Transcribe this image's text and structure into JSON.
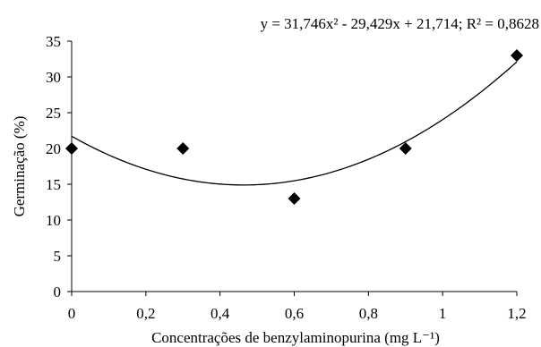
{
  "chart_data": {
    "type": "scatter",
    "title": "",
    "xlabel": "Concentrações de benzylaminopurina (mg L⁻¹)",
    "ylabel": "Germinação (%)",
    "xlim": [
      0,
      1.2
    ],
    "ylim": [
      0,
      35
    ],
    "x_ticks": [
      0,
      0.2,
      0.4,
      0.6,
      0.8,
      1.0,
      1.2
    ],
    "x_tick_labels": [
      "0",
      "0,2",
      "0,4",
      "0,6",
      "0,8",
      "1",
      "1,2"
    ],
    "y_ticks": [
      0,
      5,
      10,
      15,
      20,
      25,
      30,
      35
    ],
    "y_tick_labels": [
      "0",
      "5",
      "10",
      "15",
      "20",
      "25",
      "30",
      "35"
    ],
    "grid": false,
    "legend": "none",
    "marker": "diamond",
    "marker_color": "#000000",
    "series": [
      {
        "x": [
          0,
          0.3,
          0.6,
          0.9,
          1.2
        ],
        "y": [
          20,
          20,
          13,
          20,
          33
        ]
      }
    ],
    "trendline": {
      "type": "polynomial",
      "coefficients": {
        "a": 31.746,
        "b": -29.429,
        "c": 21.714
      },
      "r_squared": 0.8628,
      "equation_label": "y = 31,746x² - 29,429x + 21,714; R² = 0,8628"
    }
  }
}
